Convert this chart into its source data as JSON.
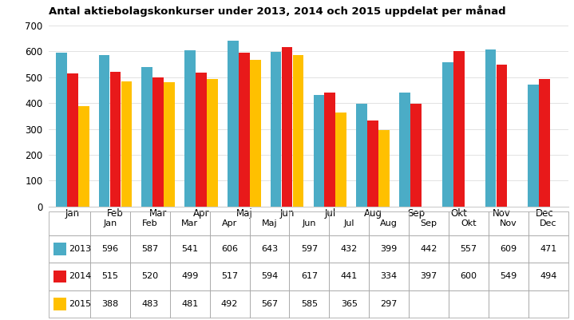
{
  "title": "Antal aktiebolagskonkurser under 2013, 2014 och 2015 uppdelat per månad",
  "months": [
    "Jan",
    "Feb",
    "Mar",
    "Apr",
    "Maj",
    "Jun",
    "Jul",
    "Aug",
    "Sep",
    "Okt",
    "Nov",
    "Dec"
  ],
  "series": {
    "2013": [
      596,
      587,
      541,
      606,
      643,
      597,
      432,
      399,
      442,
      557,
      609,
      471
    ],
    "2014": [
      515,
      520,
      499,
      517,
      594,
      617,
      441,
      334,
      397,
      600,
      549,
      494
    ],
    "2015": [
      388,
      483,
      481,
      492,
      567,
      585,
      365,
      297,
      null,
      null,
      null,
      null
    ]
  },
  "colors": {
    "2013": "#4BACC6",
    "2014": "#E8191A",
    "2015": "#FFC000"
  },
  "ylim": [
    0,
    700
  ],
  "yticks": [
    0,
    100,
    200,
    300,
    400,
    500,
    600,
    700
  ],
  "background_color": "#FFFFFF",
  "bar_width": 0.26
}
